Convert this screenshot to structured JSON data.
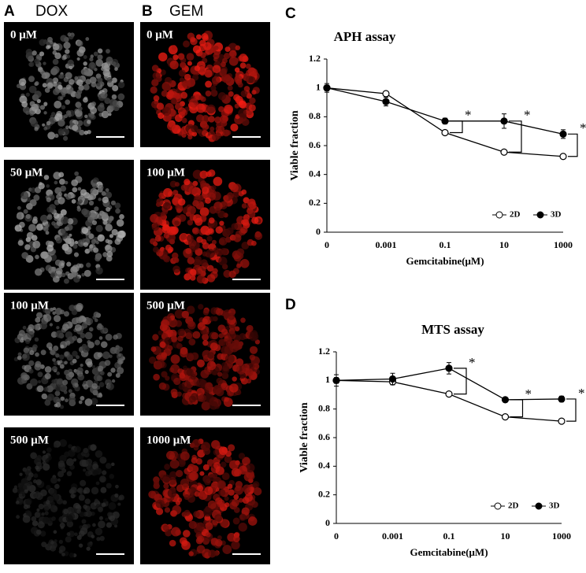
{
  "panels": [
    {
      "letter": "A",
      "title": "DOX",
      "labels": [
        "0 μM",
        "50 μM",
        "100 μM",
        "500 μM"
      ]
    },
    {
      "letter": "B",
      "title": "GEM",
      "labels": [
        "0 μM",
        "100 μM",
        "500 μM",
        "1000 μM"
      ]
    }
  ],
  "chart_data": [
    {
      "type": "line",
      "panel_letter": "C",
      "title": "APH assay",
      "x_label": "Gemcitabine(μM)",
      "y_label": "Viable fraction",
      "categories": [
        "0",
        "0.001",
        "0.1",
        "10",
        "1000"
      ],
      "series": [
        {
          "name": "2D",
          "color": "#000000",
          "marker": "open",
          "values": [
            1,
            0.96,
            0.69,
            0.555,
            0.525
          ],
          "errors": [
            0.02,
            0.01,
            0.01,
            0.01,
            0.01
          ]
        },
        {
          "name": "3D",
          "color": "#000000",
          "marker": "filled",
          "values": [
            1,
            0.905,
            0.77,
            0.77,
            0.68
          ],
          "errors": [
            0.03,
            0.03,
            0.02,
            0.05,
            0.03
          ]
        }
      ],
      "significance": [
        null,
        null,
        "*",
        "*",
        "*"
      ],
      "ylim": [
        0,
        1.2
      ],
      "yticks": [
        0,
        0.2,
        0.4,
        0.6,
        0.8,
        1,
        1.2
      ],
      "legend": "lower-right"
    },
    {
      "type": "line",
      "panel_letter": "D",
      "title": "MTS assay",
      "x_label": "Gemcitabine(μM)",
      "y_label": "Viable fraction",
      "categories": [
        "0",
        "0.001",
        "0.1",
        "10",
        "1000"
      ],
      "series": [
        {
          "name": "2D",
          "color": "#000000",
          "marker": "open",
          "values": [
            1,
            0.99,
            0.905,
            0.745,
            0.715
          ],
          "errors": [
            0.02,
            0.02,
            0.01,
            0.01,
            0.01
          ]
        },
        {
          "name": "3D",
          "color": "#000000",
          "marker": "filled",
          "values": [
            1,
            1.01,
            1.085,
            0.865,
            0.87
          ],
          "errors": [
            0.04,
            0.04,
            0.04,
            0.01,
            0.02
          ]
        }
      ],
      "significance": [
        null,
        null,
        "*",
        "*",
        "*"
      ],
      "ylim": [
        0,
        1.2
      ],
      "yticks": [
        0,
        0.2,
        0.4,
        0.6,
        0.8,
        1,
        1.2
      ],
      "legend": "lower-right"
    }
  ]
}
